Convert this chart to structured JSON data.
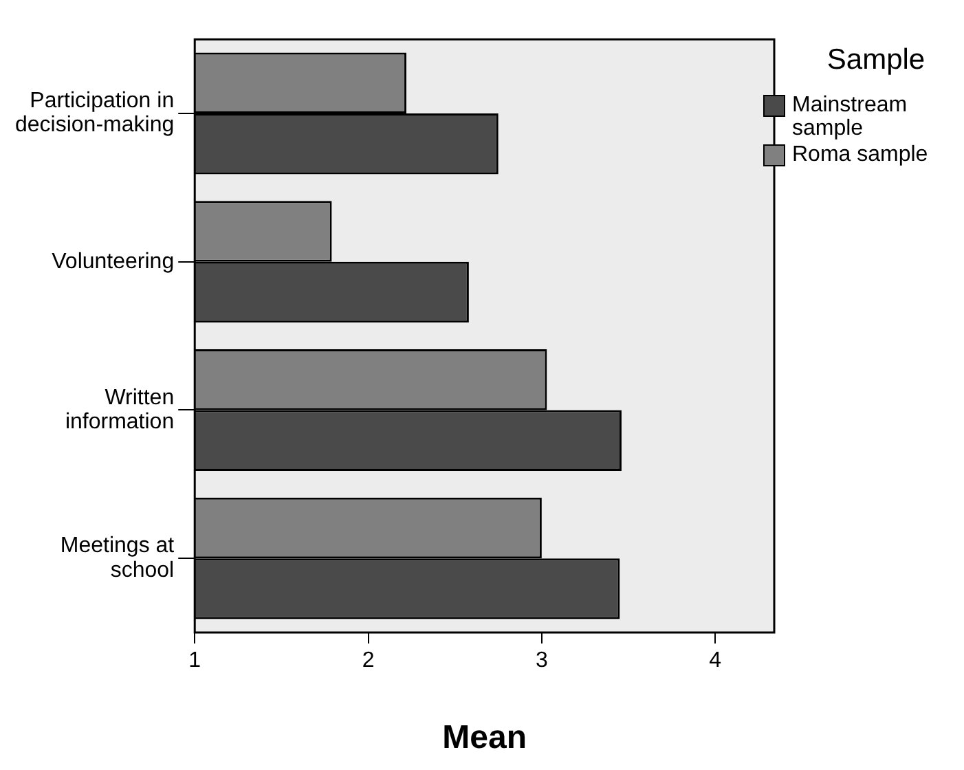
{
  "chart_data": {
    "type": "bar",
    "orientation": "horizontal",
    "xlabel": "Mean",
    "legend_title": "Sample",
    "legend": "right",
    "grid": false,
    "categories": [
      "Participation in decision-making",
      "Volunteering",
      "Written information",
      "Meetings at school"
    ],
    "series": [
      {
        "name": "Roma sample",
        "color": "#808080",
        "values": [
          2.22,
          1.79,
          3.03,
          3.0
        ]
      },
      {
        "name": "Mainstream sample",
        "color": "#4a4a4a",
        "values": [
          2.75,
          2.58,
          3.46,
          3.45
        ]
      }
    ],
    "xlim": [
      1,
      4.34
    ],
    "xticks": [
      1,
      2,
      3,
      4
    ]
  }
}
